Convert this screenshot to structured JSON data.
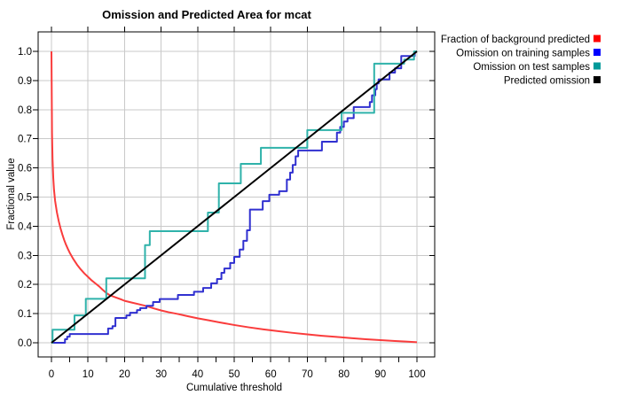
{
  "title": "Omission and Predicted Area for mcat",
  "axes": {
    "x": {
      "label": "Cumulative threshold",
      "min": 0,
      "max": 100,
      "major_step": 10,
      "minor_step": 5,
      "tick_labels": [
        "0",
        "10",
        "20",
        "30",
        "40",
        "50",
        "60",
        "70",
        "80",
        "90",
        "100"
      ]
    },
    "y": {
      "label": "Fractional value",
      "min": 0,
      "max": 1,
      "major_step": 0.1,
      "tick_labels": [
        "0.0",
        "0.1",
        "0.2",
        "0.3",
        "0.4",
        "0.5",
        "0.6",
        "0.7",
        "0.8",
        "0.9",
        "1.0"
      ]
    }
  },
  "legend": [
    {
      "label": "Fraction of background predicted",
      "color": "#ff0000"
    },
    {
      "label": "Omission on training samples",
      "color": "#0000ff"
    },
    {
      "label": "Omission on test samples",
      "color": "#009999"
    },
    {
      "label": "Predicted omission",
      "color": "#000000"
    }
  ],
  "grid_color": "#c9c9c9",
  "chart_data": {
    "type": "line",
    "title": "Omission and Predicted Area for mcat",
    "xlabel": "Cumulative threshold",
    "ylabel": "Fractional value",
    "xlim": [
      0,
      100
    ],
    "ylim": [
      0,
      1
    ],
    "grid": true,
    "legend_position": "right",
    "series": [
      {
        "name": "Fraction of background predicted",
        "color": "#fa3c3c",
        "style": "line",
        "points": [
          [
            0,
            1.0
          ],
          [
            0.15,
            0.72
          ],
          [
            0.3,
            0.63
          ],
          [
            0.5,
            0.565
          ],
          [
            0.7,
            0.525
          ],
          [
            1,
            0.487
          ],
          [
            1.5,
            0.447
          ],
          [
            2,
            0.417
          ],
          [
            2.5,
            0.392
          ],
          [
            3,
            0.371
          ],
          [
            3.5,
            0.352
          ],
          [
            4,
            0.336
          ],
          [
            4.5,
            0.322
          ],
          [
            5,
            0.309
          ],
          [
            6,
            0.287
          ],
          [
            7,
            0.268
          ],
          [
            8,
            0.252
          ],
          [
            9,
            0.238
          ],
          [
            10,
            0.226
          ],
          [
            11,
            0.214
          ],
          [
            12,
            0.204
          ],
          [
            13,
            0.194
          ],
          [
            14,
            0.182
          ],
          [
            15,
            0.171
          ],
          [
            16,
            0.163
          ],
          [
            17.5,
            0.156
          ],
          [
            19,
            0.149
          ],
          [
            20,
            0.144
          ],
          [
            22,
            0.138
          ],
          [
            24,
            0.132
          ],
          [
            26,
            0.126
          ],
          [
            28,
            0.118
          ],
          [
            30,
            0.111
          ],
          [
            32,
            0.105
          ],
          [
            34.5,
            0.099
          ],
          [
            37,
            0.092
          ],
          [
            40,
            0.084
          ],
          [
            43,
            0.077
          ],
          [
            46,
            0.07
          ],
          [
            50,
            0.061
          ],
          [
            54,
            0.053
          ],
          [
            58,
            0.046
          ],
          [
            62,
            0.04
          ],
          [
            66,
            0.034
          ],
          [
            70,
            0.029
          ],
          [
            74,
            0.024
          ],
          [
            78,
            0.02
          ],
          [
            82,
            0.016
          ],
          [
            86,
            0.012
          ],
          [
            90,
            0.009
          ],
          [
            94,
            0.006
          ],
          [
            97,
            0.004
          ],
          [
            100,
            0.002
          ]
        ]
      },
      {
        "name": "Omission on training samples",
        "color": "#3030d0",
        "style": "step",
        "points": [
          [
            0,
            0
          ],
          [
            3.7,
            0.012
          ],
          [
            4.3,
            0.021
          ],
          [
            5,
            0.03
          ],
          [
            15.5,
            0.049
          ],
          [
            16.7,
            0.057
          ],
          [
            17.5,
            0.085
          ],
          [
            20.5,
            0.094
          ],
          [
            21.5,
            0.103
          ],
          [
            23.4,
            0.112
          ],
          [
            24.3,
            0.119
          ],
          [
            26,
            0.127
          ],
          [
            27.8,
            0.14
          ],
          [
            29.6,
            0.15
          ],
          [
            34.6,
            0.164
          ],
          [
            39,
            0.175
          ],
          [
            41.5,
            0.188
          ],
          [
            43.7,
            0.204
          ],
          [
            45.3,
            0.219
          ],
          [
            46.5,
            0.24
          ],
          [
            47.3,
            0.255
          ],
          [
            48.9,
            0.274
          ],
          [
            50,
            0.295
          ],
          [
            51.5,
            0.32
          ],
          [
            52.5,
            0.35
          ],
          [
            53.5,
            0.386
          ],
          [
            54.3,
            0.457
          ],
          [
            57.8,
            0.486
          ],
          [
            59.6,
            0.508
          ],
          [
            62.3,
            0.52
          ],
          [
            64.4,
            0.56
          ],
          [
            65.3,
            0.584
          ],
          [
            66,
            0.61
          ],
          [
            66.8,
            0.64
          ],
          [
            67.5,
            0.66
          ],
          [
            74,
            0.69
          ],
          [
            78.1,
            0.721
          ],
          [
            79,
            0.741
          ],
          [
            80,
            0.759
          ],
          [
            81,
            0.771
          ],
          [
            82.7,
            0.809
          ],
          [
            87.1,
            0.826
          ],
          [
            87.7,
            0.849
          ],
          [
            88.6,
            0.87
          ],
          [
            89,
            0.89
          ],
          [
            89.5,
            0.904
          ],
          [
            92.5,
            0.927
          ],
          [
            94,
            0.942
          ],
          [
            95.7,
            0.984
          ],
          [
            99.4,
            1.0
          ],
          [
            100,
            1.0
          ]
        ]
      },
      {
        "name": "Omission on test samples",
        "color": "#2fb2aa",
        "style": "step",
        "points": [
          [
            0,
            0
          ],
          [
            0.3,
            0.045
          ],
          [
            6.3,
            0.094
          ],
          [
            9.4,
            0.151
          ],
          [
            15,
            0.221
          ],
          [
            25.6,
            0.335
          ],
          [
            26.9,
            0.383
          ],
          [
            42.8,
            0.447
          ],
          [
            45.8,
            0.547
          ],
          [
            51.8,
            0.614
          ],
          [
            57.3,
            0.669
          ],
          [
            70,
            0.73
          ],
          [
            79.4,
            0.789
          ],
          [
            88.3,
            0.958
          ],
          [
            96.5,
            0.972
          ],
          [
            99.2,
            1.0
          ],
          [
            100,
            1.0
          ]
        ]
      },
      {
        "name": "Predicted omission",
        "color": "#000000",
        "style": "line",
        "points": [
          [
            0,
            0
          ],
          [
            100,
            1
          ]
        ]
      }
    ]
  }
}
